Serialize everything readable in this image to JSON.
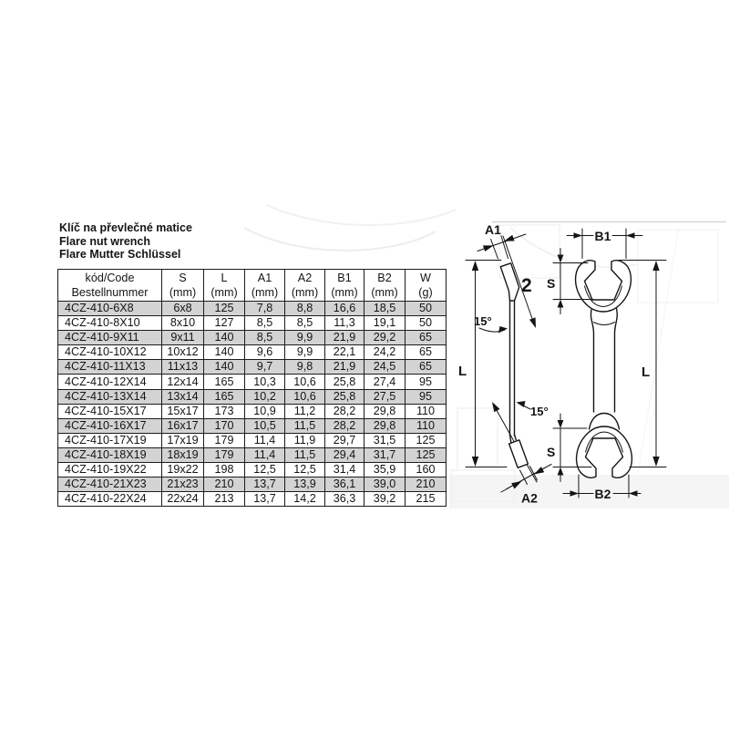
{
  "page": {
    "titles": [
      "Klíč na převlečné matice",
      "Flare nut wrench",
      "Flare Mutter Schlüssel"
    ]
  },
  "table": {
    "header": {
      "code_line1": "kód/Code",
      "code_line2": "Bestellnummer",
      "columns": [
        {
          "label": "S",
          "unit": "(mm)"
        },
        {
          "label": "L",
          "unit": "(mm)"
        },
        {
          "label": "A1",
          "unit": "(mm)"
        },
        {
          "label": "A2",
          "unit": "(mm)"
        },
        {
          "label": "B1",
          "unit": "(mm)"
        },
        {
          "label": "B2",
          "unit": "(mm)"
        },
        {
          "label": "W",
          "unit": "(g)"
        }
      ]
    },
    "rows": [
      [
        "4CZ-410-6X8",
        "6x8",
        "125",
        "7,8",
        "8,8",
        "16,6",
        "18,5",
        "50"
      ],
      [
        "4CZ-410-8X10",
        "8x10",
        "127",
        "8,5",
        "8,5",
        "11,3",
        "19,1",
        "50"
      ],
      [
        "4CZ-410-9X11",
        "9x11",
        "140",
        "8,5",
        "9,9",
        "21,9",
        "29,2",
        "65"
      ],
      [
        "4CZ-410-10X12",
        "10x12",
        "140",
        "9,6",
        "9,9",
        "22,1",
        "24,2",
        "65"
      ],
      [
        "4CZ-410-11X13",
        "11x13",
        "140",
        "9,7",
        "9,8",
        "21,9",
        "24,5",
        "65"
      ],
      [
        "4CZ-410-12X14",
        "12x14",
        "165",
        "10,3",
        "10,6",
        "25,8",
        "27,4",
        "95"
      ],
      [
        "4CZ-410-13X14",
        "13x14",
        "165",
        "10,2",
        "10,6",
        "25,8",
        "27,5",
        "95"
      ],
      [
        "4CZ-410-15X17",
        "15x17",
        "173",
        "10,9",
        "11,2",
        "28,2",
        "29,8",
        "110"
      ],
      [
        "4CZ-410-16X17",
        "16x17",
        "170",
        "10,5",
        "11,5",
        "28,2",
        "29,8",
        "110"
      ],
      [
        "4CZ-410-17X19",
        "17x19",
        "179",
        "11,4",
        "11,9",
        "29,7",
        "31,5",
        "125"
      ],
      [
        "4CZ-410-18X19",
        "18x19",
        "179",
        "11,4",
        "11,5",
        "29,4",
        "31,7",
        "125"
      ],
      [
        "4CZ-410-19X22",
        "19x22",
        "198",
        "12,5",
        "12,5",
        "31,4",
        "35,9",
        "160"
      ],
      [
        "4CZ-410-21X23",
        "21x23",
        "210",
        "13,7",
        "13,9",
        "36,1",
        "39,0",
        "210"
      ],
      [
        "4CZ-410-22X24",
        "22x24",
        "213",
        "13,7",
        "14,2",
        "36,3",
        "39,2",
        "215"
      ]
    ],
    "shaded_row_color": "#d3d3d3"
  },
  "diagram": {
    "labels": {
      "a1": "A1",
      "b1": "B1",
      "s_top": "S",
      "l_left": "L",
      "l_right": "L",
      "angle_top": "15°",
      "angle_bottom": "15°",
      "s_bottom": "S",
      "a2": "A2",
      "b2": "B2"
    },
    "watermark_digit": "2",
    "line_color": "#151515"
  }
}
